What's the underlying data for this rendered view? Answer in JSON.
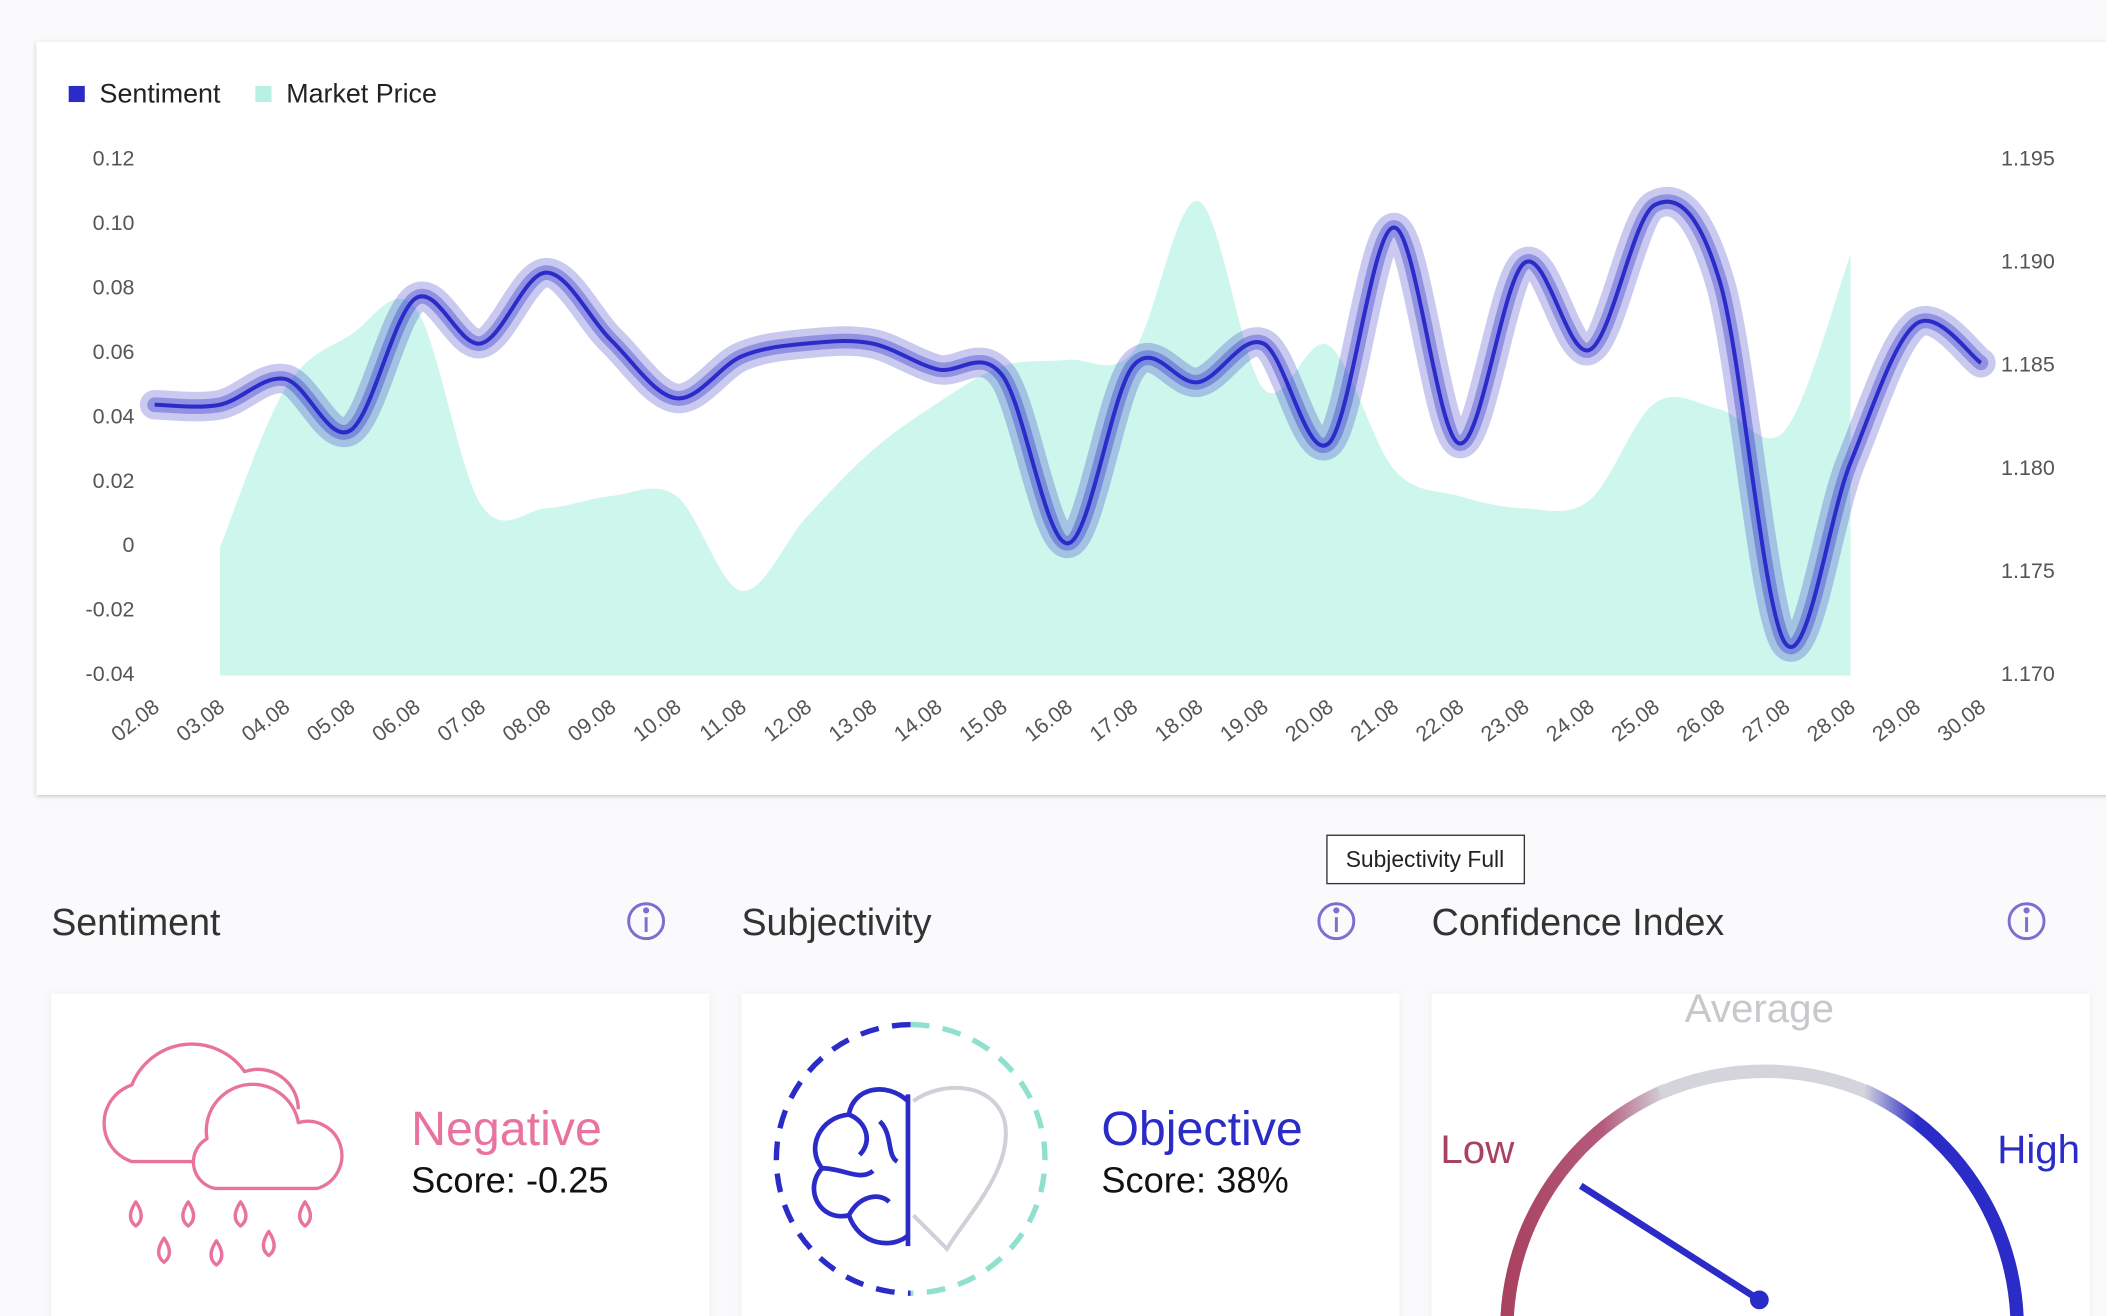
{
  "chart_data": {
    "type": "line",
    "legend": "top-left",
    "categories": [
      "02.08",
      "03.08",
      "04.08",
      "05.08",
      "06.08",
      "07.08",
      "08.08",
      "09.08",
      "10.08",
      "11.08",
      "12.08",
      "13.08",
      "14.08",
      "15.08",
      "16.08",
      "17.08",
      "18.08",
      "19.08",
      "20.08",
      "21.08",
      "22.08",
      "23.08",
      "24.08",
      "25.08",
      "26.08",
      "27.08",
      "28.08",
      "29.08",
      "30.08"
    ],
    "series": [
      {
        "name": "Sentiment",
        "color": "#2b2bc8",
        "values": [
          0.044,
          0.044,
          0.052,
          0.036,
          0.077,
          0.063,
          0.085,
          0.064,
          0.046,
          0.059,
          0.063,
          0.063,
          0.055,
          0.053,
          0.001,
          0.056,
          0.051,
          0.063,
          0.032,
          0.099,
          0.032,
          0.088,
          0.061,
          0.106,
          0.082,
          -0.03,
          0.026,
          0.069,
          0.057
        ]
      },
      {
        "name": "Market Price",
        "color": "#cdf6ed",
        "type": "area",
        "axis": "y2",
        "values": [
          null,
          1.1762,
          1.1839,
          1.1865,
          1.1878,
          1.1783,
          1.1781,
          1.1787,
          1.1787,
          1.1741,
          1.1777,
          1.1809,
          1.1832,
          1.185,
          1.1853,
          1.1857,
          1.193,
          1.1839,
          1.186,
          1.18,
          1.1787,
          1.1781,
          1.1785,
          1.1832,
          1.1829,
          1.1819,
          1.1904,
          null,
          null
        ]
      }
    ],
    "ylim": [
      -0.04,
      0.12
    ],
    "yticks": [
      -0.04,
      -0.02,
      0,
      0.02,
      0.04,
      0.06,
      0.08,
      {
        "value": 0.1,
        "label": "0.10"
      },
      0.12
    ],
    "y2lim": [
      1.17,
      1.195
    ],
    "y2ticks": [
      {
        "value": 1.17,
        "label": "1.170"
      },
      1.175,
      {
        "value": 1.18,
        "label": "1.180"
      },
      1.185,
      {
        "value": 1.19,
        "label": "1.190"
      },
      1.195
    ]
  },
  "tooltip": "Subjectivity Full",
  "panels": [
    {
      "title": "Sentiment",
      "label": "Negative",
      "score": "Score: -0.25"
    },
    {
      "title": "Subjectivity",
      "label": "Objective",
      "score": "Score: 38%"
    },
    {
      "title": "Confidence Index",
      "gauge": {
        "top": "Average",
        "low": "Low",
        "high": "High"
      }
    }
  ]
}
